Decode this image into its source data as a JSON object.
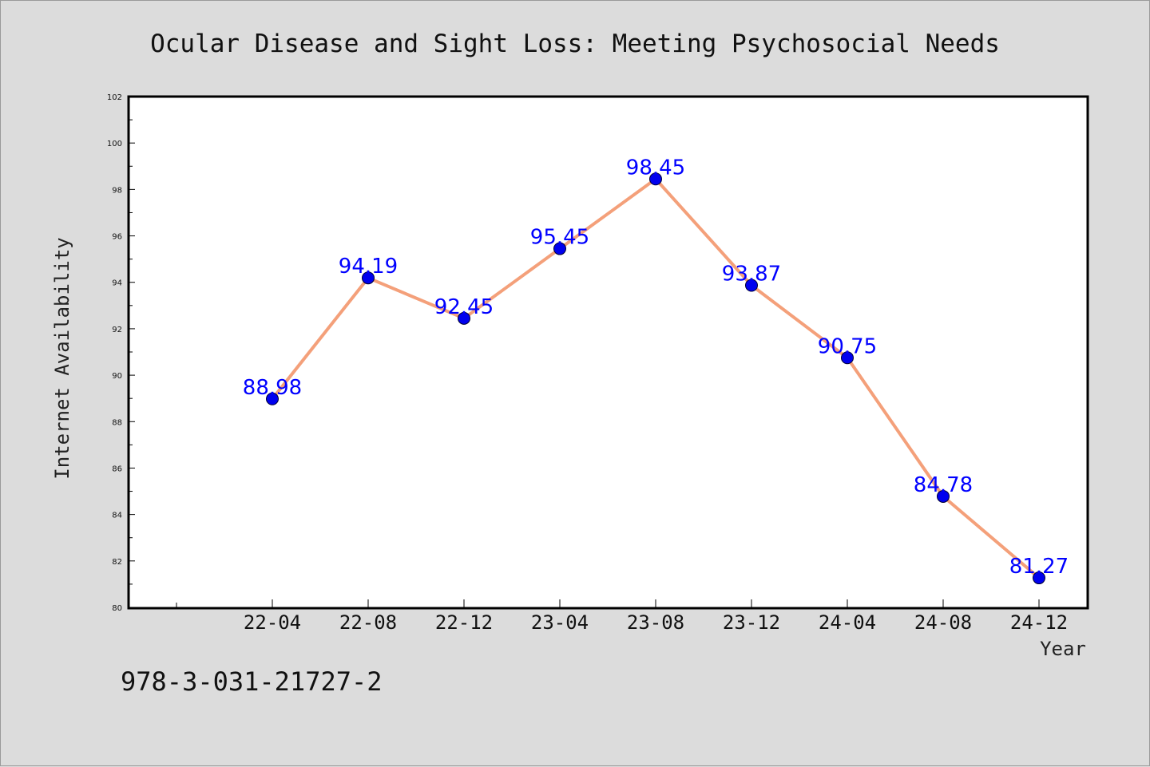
{
  "chart_data": {
    "type": "line",
    "title": "Ocular Disease and Sight Loss: Meeting Psychosocial Needs",
    "xlabel": "Year",
    "ylabel": "Internet Availability",
    "categories": [
      "22-04",
      "22-08",
      "22-12",
      "23-04",
      "23-08",
      "23-12",
      "24-04",
      "24-08",
      "24-12"
    ],
    "series": [
      {
        "values": [
          88.98,
          94.19,
          92.45,
          95.45,
          98.45,
          93.87,
          90.75,
          84.78,
          81.27
        ],
        "data_labels": [
          "88.98",
          "94.19",
          "92.45",
          "95.45",
          "98.45",
          "93.87",
          "90.75",
          "84.78",
          "81.27"
        ],
        "line_color": "#f4a07a",
        "marker_color": "#0000ee"
      }
    ],
    "ylim": [
      80,
      102
    ],
    "yticks": [
      "80",
      "82",
      "84",
      "86",
      "88",
      "90",
      "92",
      "94",
      "96",
      "98",
      "100",
      "102"
    ],
    "grid": false,
    "legend": "none"
  },
  "footer": {
    "isbn": "978-3-031-21727-2"
  }
}
